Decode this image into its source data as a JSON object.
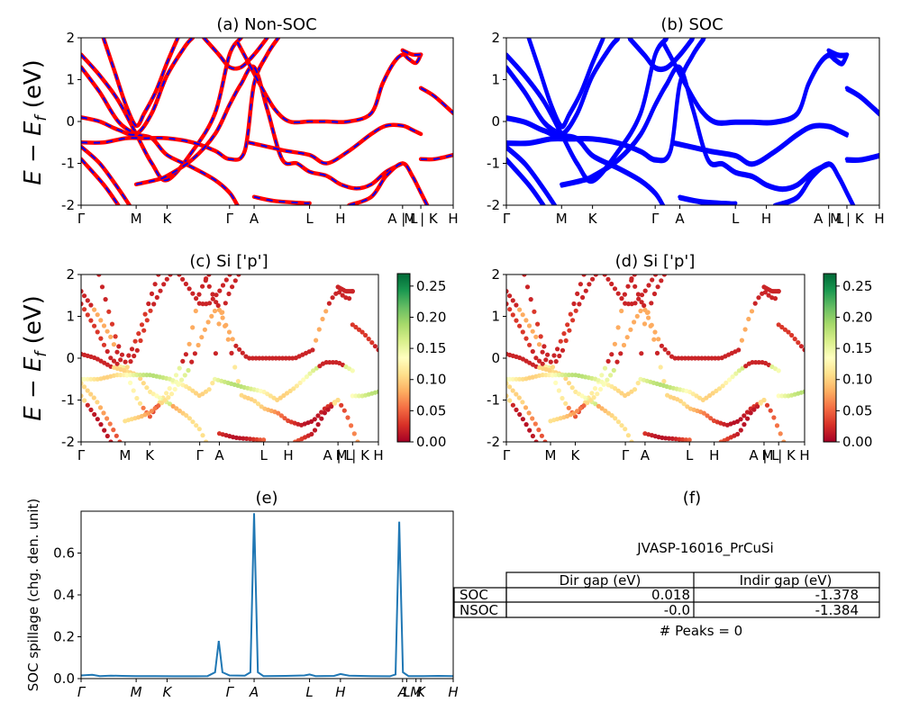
{
  "figure": {
    "ylabel_main": "E − E_f (eV)",
    "ylabel_main_parts": [
      "E − E",
      "f",
      " (eV)"
    ],
    "panel_a_title": "(a) Non-SOC",
    "panel_b_title": "(b) SOC",
    "panel_c_title": "(c)  Si ['p']",
    "panel_d_title": "(d) Si ['p']",
    "panel_e_title": "(e)",
    "panel_f_title": "(f)",
    "panel_e_ylabel": "SOC spillage (chg. den. unit)",
    "colors": {
      "red": "#ff0000",
      "blue": "#0000ff",
      "spillage": "#1f77b4"
    },
    "kpath_labels": [
      "Γ",
      "M",
      "K",
      "Γ",
      "A",
      "L",
      "H",
      "A | L",
      "M | K",
      "H"
    ]
  },
  "chart_data": [
    {
      "id": "a",
      "type": "line",
      "title": "(a) Non-SOC",
      "ylim": [
        -2,
        2
      ],
      "yticks": [
        -2,
        -1,
        0,
        1,
        2
      ],
      "kpath": [
        "Γ",
        "M",
        "K",
        "Γ",
        "A",
        "L",
        "H",
        "A | L",
        "M | K",
        "H"
      ],
      "kpath_pos": [
        0,
        0.148,
        0.231,
        0.399,
        0.465,
        0.614,
        0.697,
        0.864,
        0.913,
        1.0
      ],
      "series": [
        {
          "values": [
            [
              0,
              1.6
            ],
            [
              0.05,
              1.1
            ],
            [
              0.1,
              0.5
            ],
            [
              0.148,
              -0.3
            ],
            [
              0.19,
              -1.0
            ],
            [
              0.231,
              -1.4
            ],
            [
              0.3,
              -0.7
            ],
            [
              0.36,
              0.2
            ],
            [
              0.399,
              1.6
            ],
            [
              0.43,
              2.0
            ]
          ]
        },
        {
          "values": [
            [
              0,
              1.3
            ],
            [
              0.05,
              0.7
            ],
            [
              0.1,
              0.0
            ],
            [
              0.148,
              -0.3
            ],
            [
              0.19,
              -0.4
            ],
            [
              0.231,
              -0.8
            ],
            [
              0.3,
              -1.1
            ],
            [
              0.36,
              -1.4
            ],
            [
              0.399,
              -1.7
            ],
            [
              0.42,
              -2.0
            ]
          ]
        },
        {
          "values": [
            [
              0,
              0.1
            ],
            [
              0.05,
              0.0
            ],
            [
              0.1,
              -0.2
            ],
            [
              0.148,
              -0.3
            ],
            [
              0.19,
              0.2
            ],
            [
              0.231,
              1.1
            ],
            [
              0.28,
              1.8
            ],
            [
              0.3,
              2.0
            ]
          ]
        },
        {
          "values": [
            [
              0,
              -0.5
            ],
            [
              0.06,
              -0.5
            ],
            [
              0.12,
              -0.4
            ],
            [
              0.17,
              -0.4
            ],
            [
              0.231,
              -0.4
            ],
            [
              0.3,
              -0.5
            ],
            [
              0.36,
              -0.7
            ],
            [
              0.399,
              -0.9
            ],
            [
              0.44,
              -0.7
            ],
            [
              0.465,
              0.9
            ],
            [
              0.5,
              1.6
            ],
            [
              0.53,
              2.0
            ]
          ]
        },
        {
          "values": [
            [
              0,
              -0.6
            ],
            [
              0.05,
              -1.0
            ],
            [
              0.1,
              -1.6
            ],
            [
              0.13,
              -2.0
            ]
          ]
        },
        {
          "values": [
            [
              0,
              -0.9
            ],
            [
              0.06,
              -1.5
            ],
            [
              0.1,
              -2.0
            ]
          ]
        },
        {
          "values": [
            [
              0.148,
              -1.5
            ],
            [
              0.2,
              -1.4
            ],
            [
              0.231,
              -1.3
            ],
            [
              0.3,
              -0.9
            ],
            [
              0.36,
              -0.3
            ],
            [
              0.399,
              0.4
            ],
            [
              0.43,
              0.9
            ],
            [
              0.465,
              1.3
            ],
            [
              0.5,
              0.3
            ],
            [
              0.54,
              -0.9
            ],
            [
              0.58,
              -1.0
            ],
            [
              0.614,
              -1.2
            ],
            [
              0.66,
              -1.3
            ],
            [
              0.697,
              -1.5
            ],
            [
              0.74,
              -1.6
            ],
            [
              0.78,
              -1.5
            ],
            [
              0.82,
              -1.2
            ],
            [
              0.864,
              -1.0
            ]
          ]
        },
        {
          "values": [
            [
              0.06,
              2.0
            ],
            [
              0.09,
              1.2
            ],
            [
              0.12,
              0.4
            ],
            [
              0.148,
              -0.1
            ],
            [
              0.17,
              0.2
            ],
            [
              0.2,
              0.7
            ],
            [
              0.231,
              1.4
            ],
            [
              0.26,
              2.0
            ]
          ]
        },
        {
          "values": [
            [
              0.33,
              2.0
            ],
            [
              0.37,
              1.6
            ],
            [
              0.399,
              1.3
            ],
            [
              0.43,
              1.3
            ],
            [
              0.465,
              1.6
            ],
            [
              0.5,
              2.0
            ]
          ]
        },
        {
          "values": [
            [
              0.42,
              1.9
            ],
            [
              0.45,
              1.4
            ],
            [
              0.48,
              0.9
            ],
            [
              0.52,
              0.3
            ],
            [
              0.56,
              0.0
            ],
            [
              0.614,
              0.0
            ],
            [
              0.66,
              0.0
            ],
            [
              0.72,
              0.0
            ],
            [
              0.78,
              0.2
            ],
            [
              0.81,
              0.9
            ],
            [
              0.84,
              1.4
            ],
            [
              0.864,
              1.6
            ],
            [
              0.88,
              1.5
            ],
            [
              0.9,
              1.4
            ],
            [
              0.913,
              1.6
            ]
          ]
        },
        {
          "values": [
            [
              0.45,
              -0.5
            ],
            [
              0.5,
              -0.6
            ],
            [
              0.55,
              -0.7
            ],
            [
              0.614,
              -0.8
            ],
            [
              0.66,
              -1.0
            ],
            [
              0.72,
              -0.7
            ],
            [
              0.78,
              -0.3
            ],
            [
              0.82,
              -0.1
            ],
            [
              0.864,
              -0.1
            ],
            [
              0.89,
              -0.2
            ],
            [
              0.913,
              -0.3
            ]
          ]
        },
        {
          "values": [
            [
              0.465,
              -1.8
            ],
            [
              0.52,
              -1.9
            ],
            [
              0.6,
              -1.95
            ],
            [
              0.614,
              -1.95
            ]
          ]
        },
        {
          "values": [
            [
              0.72,
              -2.0
            ],
            [
              0.78,
              -1.8
            ],
            [
              0.82,
              -1.3
            ],
            [
              0.864,
              -1.0
            ],
            [
              0.89,
              -1.3
            ],
            [
              0.913,
              -1.7
            ],
            [
              0.93,
              -2.0
            ]
          ]
        },
        {
          "values": [
            [
              0.913,
              -0.9
            ],
            [
              0.95,
              -0.9
            ],
            [
              1.0,
              -0.8
            ]
          ]
        },
        {
          "values": [
            [
              0.913,
              0.8
            ],
            [
              0.95,
              0.6
            ],
            [
              1.0,
              0.2
            ]
          ]
        },
        {
          "values": [
            [
              0.864,
              1.7
            ],
            [
              0.89,
              1.6
            ],
            [
              0.913,
              1.6
            ]
          ]
        }
      ]
    },
    {
      "id": "b",
      "type": "line",
      "title": "(b) SOC",
      "ylim": [
        -2,
        2
      ],
      "yticks": [
        -2,
        -1,
        0,
        1,
        2
      ],
      "kpath": [
        "Γ",
        "M",
        "K",
        "Γ",
        "A",
        "L",
        "H",
        "A | L",
        "M | K",
        "H"
      ],
      "kpath_pos": [
        0,
        0.148,
        0.231,
        0.399,
        0.465,
        0.614,
        0.697,
        0.864,
        0.913,
        1.0
      ]
    },
    {
      "id": "c",
      "type": "scatter",
      "title": "(c)  Si ['p']",
      "ylim": [
        -2,
        2
      ],
      "yticks": [
        -2,
        -1,
        0,
        1,
        2
      ],
      "kpath": [
        "Γ",
        "M",
        "K",
        "Γ",
        "A",
        "L",
        "H",
        "A | L",
        "M | K",
        "H"
      ],
      "kpath_pos": [
        0,
        0.148,
        0.231,
        0.399,
        0.465,
        0.614,
        0.697,
        0.864,
        0.913,
        1.0
      ],
      "colorbar": {
        "range": [
          0.0,
          0.27
        ],
        "ticks": [
          "0.00",
          "0.05",
          "0.10",
          "0.15",
          "0.20",
          "0.25"
        ],
        "colormap": "RdYlGn"
      }
    },
    {
      "id": "d",
      "type": "scatter",
      "title": "(d) Si ['p']",
      "ylim": [
        -2,
        2
      ],
      "yticks": [
        -2,
        -1,
        0,
        1,
        2
      ],
      "kpath": [
        "Γ",
        "M",
        "K",
        "Γ",
        "A",
        "L",
        "H",
        "A | L",
        "M | K",
        "H"
      ],
      "kpath_pos": [
        0,
        0.148,
        0.231,
        0.399,
        0.465,
        0.614,
        0.697,
        0.864,
        0.913,
        1.0
      ],
      "colorbar": {
        "range": [
          0.0,
          0.27
        ],
        "ticks": [
          "0.00",
          "0.05",
          "0.10",
          "0.15",
          "0.20",
          "0.25"
        ],
        "colormap": "RdYlGn"
      }
    },
    {
      "id": "e",
      "type": "line",
      "title": "(e)",
      "ylabel": "SOC spillage (chg. den. unit)",
      "ylim": [
        0,
        0.8
      ],
      "yticks": [
        "0.0",
        "0.2",
        "0.4",
        "0.6"
      ],
      "kpath": [
        "Γ",
        "M",
        "K",
        "Γ",
        "A",
        "L",
        "H",
        "A",
        "L",
        "M",
        "K",
        "H"
      ],
      "kpath_pos": [
        0,
        0.148,
        0.231,
        0.399,
        0.465,
        0.614,
        0.697,
        0.864,
        0.875,
        0.9,
        0.913,
        1.0
      ],
      "series": [
        {
          "name": "",
          "values": [
            [
              0,
              0.015
            ],
            [
              0.03,
              0.018
            ],
            [
              0.05,
              0.012
            ],
            [
              0.08,
              0.014
            ],
            [
              0.11,
              0.013
            ],
            [
              0.148,
              0.012
            ],
            [
              0.2,
              0.012
            ],
            [
              0.25,
              0.011
            ],
            [
              0.31,
              0.011
            ],
            [
              0.34,
              0.012
            ],
            [
              0.36,
              0.03
            ],
            [
              0.37,
              0.18
            ],
            [
              0.38,
              0.03
            ],
            [
              0.399,
              0.015
            ],
            [
              0.44,
              0.014
            ],
            [
              0.455,
              0.03
            ],
            [
              0.465,
              0.79
            ],
            [
              0.475,
              0.03
            ],
            [
              0.49,
              0.012
            ],
            [
              0.55,
              0.013
            ],
            [
              0.6,
              0.015
            ],
            [
              0.614,
              0.02
            ],
            [
              0.63,
              0.012
            ],
            [
              0.68,
              0.013
            ],
            [
              0.697,
              0.022
            ],
            [
              0.72,
              0.014
            ],
            [
              0.78,
              0.012
            ],
            [
              0.83,
              0.011
            ],
            [
              0.845,
              0.02
            ],
            [
              0.855,
              0.75
            ],
            [
              0.865,
              0.03
            ],
            [
              0.88,
              0.012
            ],
            [
              0.92,
              0.012
            ],
            [
              0.96,
              0.013
            ],
            [
              1.0,
              0.012
            ]
          ]
        }
      ]
    },
    {
      "id": "f",
      "type": "table",
      "title": "(f)",
      "subtitle": "JVASP-16016_PrCuSi",
      "columns": [
        "Dir gap (eV)",
        "Indir gap (eV)"
      ],
      "rows": [
        {
          "label": "SOC",
          "values": [
            "0.018",
            "-1.378"
          ]
        },
        {
          "label": "NSOC",
          "values": [
            "-0.0",
            "-1.384"
          ]
        }
      ],
      "footer": "# Peaks = 0"
    }
  ]
}
